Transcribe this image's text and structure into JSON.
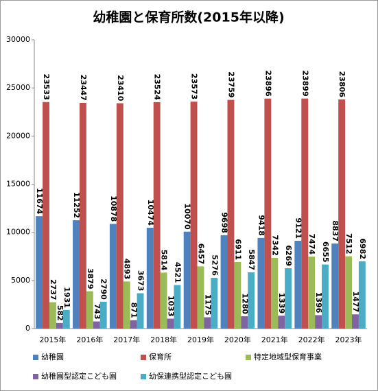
{
  "chart_data": {
    "type": "bar",
    "title": "幼稚園と保育所数(2015年以降)",
    "categories": [
      "2015年",
      "2016年",
      "2017年",
      "2018年",
      "2019年",
      "2020年",
      "2021年",
      "2022年",
      "2023年"
    ],
    "series": [
      {
        "name": "幼稚園",
        "color": "#4f81bd",
        "values": [
          11674,
          11252,
          10878,
          10474,
          10070,
          9698,
          9418,
          9121,
          8837
        ]
      },
      {
        "name": "保育所",
        "color": "#c0504d",
        "values": [
          23533,
          23447,
          23410,
          23524,
          23573,
          23759,
          23896,
          23899,
          23806
        ]
      },
      {
        "name": "特定地域型保育事業",
        "color": "#9bbb59",
        "values": [
          2737,
          3879,
          4893,
          5814,
          6457,
          6911,
          7342,
          7474,
          7512
        ]
      },
      {
        "name": "幼稚園型認定こども園",
        "color": "#8064a2",
        "values": [
          582,
          743,
          871,
          1033,
          1175,
          1280,
          1339,
          1396,
          1477
        ]
      },
      {
        "name": "幼保連携型認定こども園",
        "color": "#4bacc6",
        "values": [
          1931,
          2790,
          3673,
          4521,
          5276,
          5847,
          6269,
          6655,
          6982
        ]
      }
    ],
    "ylim": [
      0,
      30000
    ],
    "yticks": [
      0,
      5000,
      10000,
      15000,
      20000,
      25000,
      30000
    ],
    "grid": false
  }
}
